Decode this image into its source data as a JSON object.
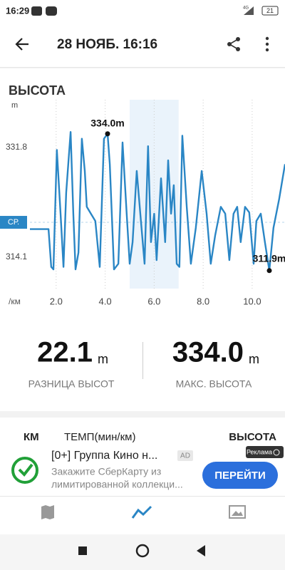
{
  "status_bar": {
    "time": "16:29",
    "network": "4G",
    "battery": "21"
  },
  "header": {
    "title": "28 НОЯБ. 16:16"
  },
  "section_title": "ВЫСОТА",
  "chart_data": {
    "type": "line",
    "y_unit": "m",
    "x_unit": "/км",
    "color": "#2a86c5",
    "x": [
      0.93,
      1.69,
      1.8,
      1.89,
      2.03,
      2.18,
      2.3,
      2.41,
      2.59,
      2.7,
      2.79,
      2.91,
      3.05,
      3.17,
      3.25,
      3.6,
      3.78,
      3.95,
      4.1,
      4.19,
      4.36,
      4.54,
      4.71,
      4.88,
      5.0,
      5.12,
      5.29,
      5.46,
      5.61,
      5.75,
      5.87,
      6.0,
      6.1,
      6.28,
      6.45,
      6.57,
      6.69,
      6.8,
      6.92,
      7.03,
      7.15,
      7.33,
      7.5,
      7.7,
      7.94,
      8.14,
      8.31,
      8.49,
      8.72,
      8.9,
      9.07,
      9.24,
      9.39,
      9.53,
      9.71,
      9.88,
      10.06,
      10.17,
      10.35,
      10.52,
      10.7,
      10.87,
      11.1,
      11.34
    ],
    "values": [
      318.6,
      318.6,
      312.5,
      312.1,
      331.4,
      321.1,
      312.5,
      324.5,
      334.3,
      321.1,
      312.1,
      314.8,
      333.2,
      328.0,
      322.2,
      319.9,
      312.5,
      333.2,
      334.0,
      329.1,
      312.1,
      313.0,
      332.6,
      321.1,
      313.0,
      316.5,
      328.0,
      319.9,
      313.0,
      332.0,
      316.5,
      321.1,
      313.6,
      326.8,
      316.5,
      329.7,
      321.1,
      325.7,
      313.0,
      312.5,
      333.7,
      322.2,
      313.0,
      318.8,
      328.0,
      321.1,
      313.0,
      317.6,
      322.2,
      321.1,
      313.6,
      321.1,
      322.2,
      316.5,
      322.2,
      321.3,
      313.0,
      319.9,
      321.1,
      316.5,
      311.9,
      318.8,
      323.4,
      329.1
    ],
    "xlim": [
      0.93,
      11.34
    ],
    "ylim": [
      309,
      339.5
    ],
    "xticks": [
      {
        "value": 2,
        "label": "2.0"
      },
      {
        "value": 4,
        "label": "4.0"
      },
      {
        "value": 6,
        "label": "6.0"
      },
      {
        "value": 8,
        "label": "8.0"
      },
      {
        "value": 10,
        "label": "10.0"
      }
    ],
    "yticks": [
      314.1,
      331.8
    ],
    "average": {
      "value": 319.7,
      "label": "СР."
    },
    "highlight": [
      5.0,
      7.0
    ],
    "annotations": [
      {
        "x": 4.1,
        "value": 334.0,
        "label": "334.0m"
      },
      {
        "x": 10.7,
        "value": 311.9,
        "label": "311.9m"
      }
    ]
  },
  "stats": [
    {
      "value": "22.1",
      "unit": "m",
      "label": "РАЗНИЦА ВЫСОТ"
    },
    {
      "value": "334.0",
      "unit": "m",
      "label": "МАКС. ВЫСОТА"
    }
  ],
  "table_header": [
    "КМ",
    "ТЕМП(мин/км)",
    "ВЫСОТА"
  ],
  "ad": {
    "title": "[0+] Группа Кино н...",
    "badge": "AD",
    "text_lines": [
      "Закажите СберКарту из",
      "лимитированной коллекци..."
    ],
    "button": "ПЕРЕЙТИ",
    "tag": "Реклама"
  }
}
